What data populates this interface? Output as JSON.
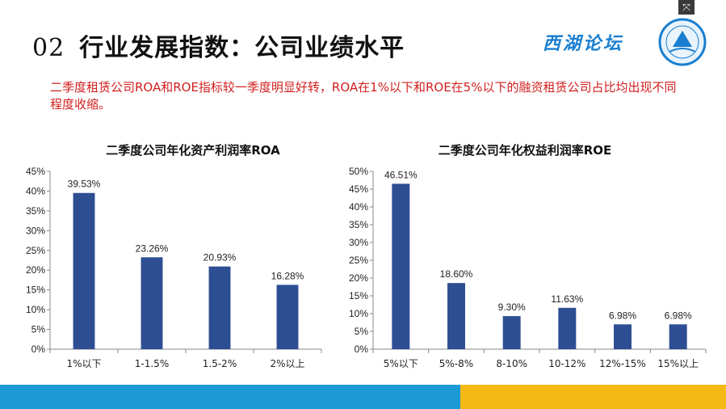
{
  "slide": {
    "title_number": "02",
    "title": "行业发展指数：公司业绩水平",
    "brand": "西湖论坛",
    "summary": "二季度租赁公司ROA和ROE指标较一季度明显好转，ROA在1%以下和ROE在5%以下的融资租赁公司占比均出现不同程度收缩。"
  },
  "colors": {
    "bar": "#2e4e94",
    "summary_text": "#d11f1f",
    "footer_left": "#1b9ad6",
    "footer_right": "#f5b915"
  },
  "icons": {
    "logo": "xihu-forum-logo",
    "corner": "expand-icon"
  },
  "chart_data": [
    {
      "type": "bar",
      "title": "二季度公司年化资产利润率ROA",
      "categories": [
        "1%以下",
        "1-1.5%",
        "1.5-2%",
        "2%以上"
      ],
      "values": [
        39.53,
        23.26,
        20.93,
        16.28
      ],
      "data_labels": [
        "39.53%",
        "23.26%",
        "20.93%",
        "16.28%"
      ],
      "ylim": [
        0,
        45
      ],
      "yticks": [
        "0%",
        "5%",
        "10%",
        "15%",
        "20%",
        "25%",
        "30%",
        "35%",
        "40%",
        "45%"
      ],
      "grid": false,
      "legend": "none"
    },
    {
      "type": "bar",
      "title": "二季度公司年化权益利润率ROE",
      "categories": [
        "5%以下",
        "5%-8%",
        "8-10%",
        "10-12%",
        "12%-15%",
        "15%以上"
      ],
      "values": [
        46.51,
        18.6,
        9.3,
        11.63,
        6.98,
        6.98
      ],
      "data_labels": [
        "46.51%",
        "18.60%",
        "9.30%",
        "11.63%",
        "6.98%",
        "6.98%"
      ],
      "ylim": [
        0,
        50
      ],
      "yticks": [
        "0%",
        "5%",
        "10%",
        "15%",
        "20%",
        "25%",
        "30%",
        "35%",
        "40%",
        "45%",
        "50%"
      ],
      "grid": false,
      "legend": "none"
    }
  ]
}
